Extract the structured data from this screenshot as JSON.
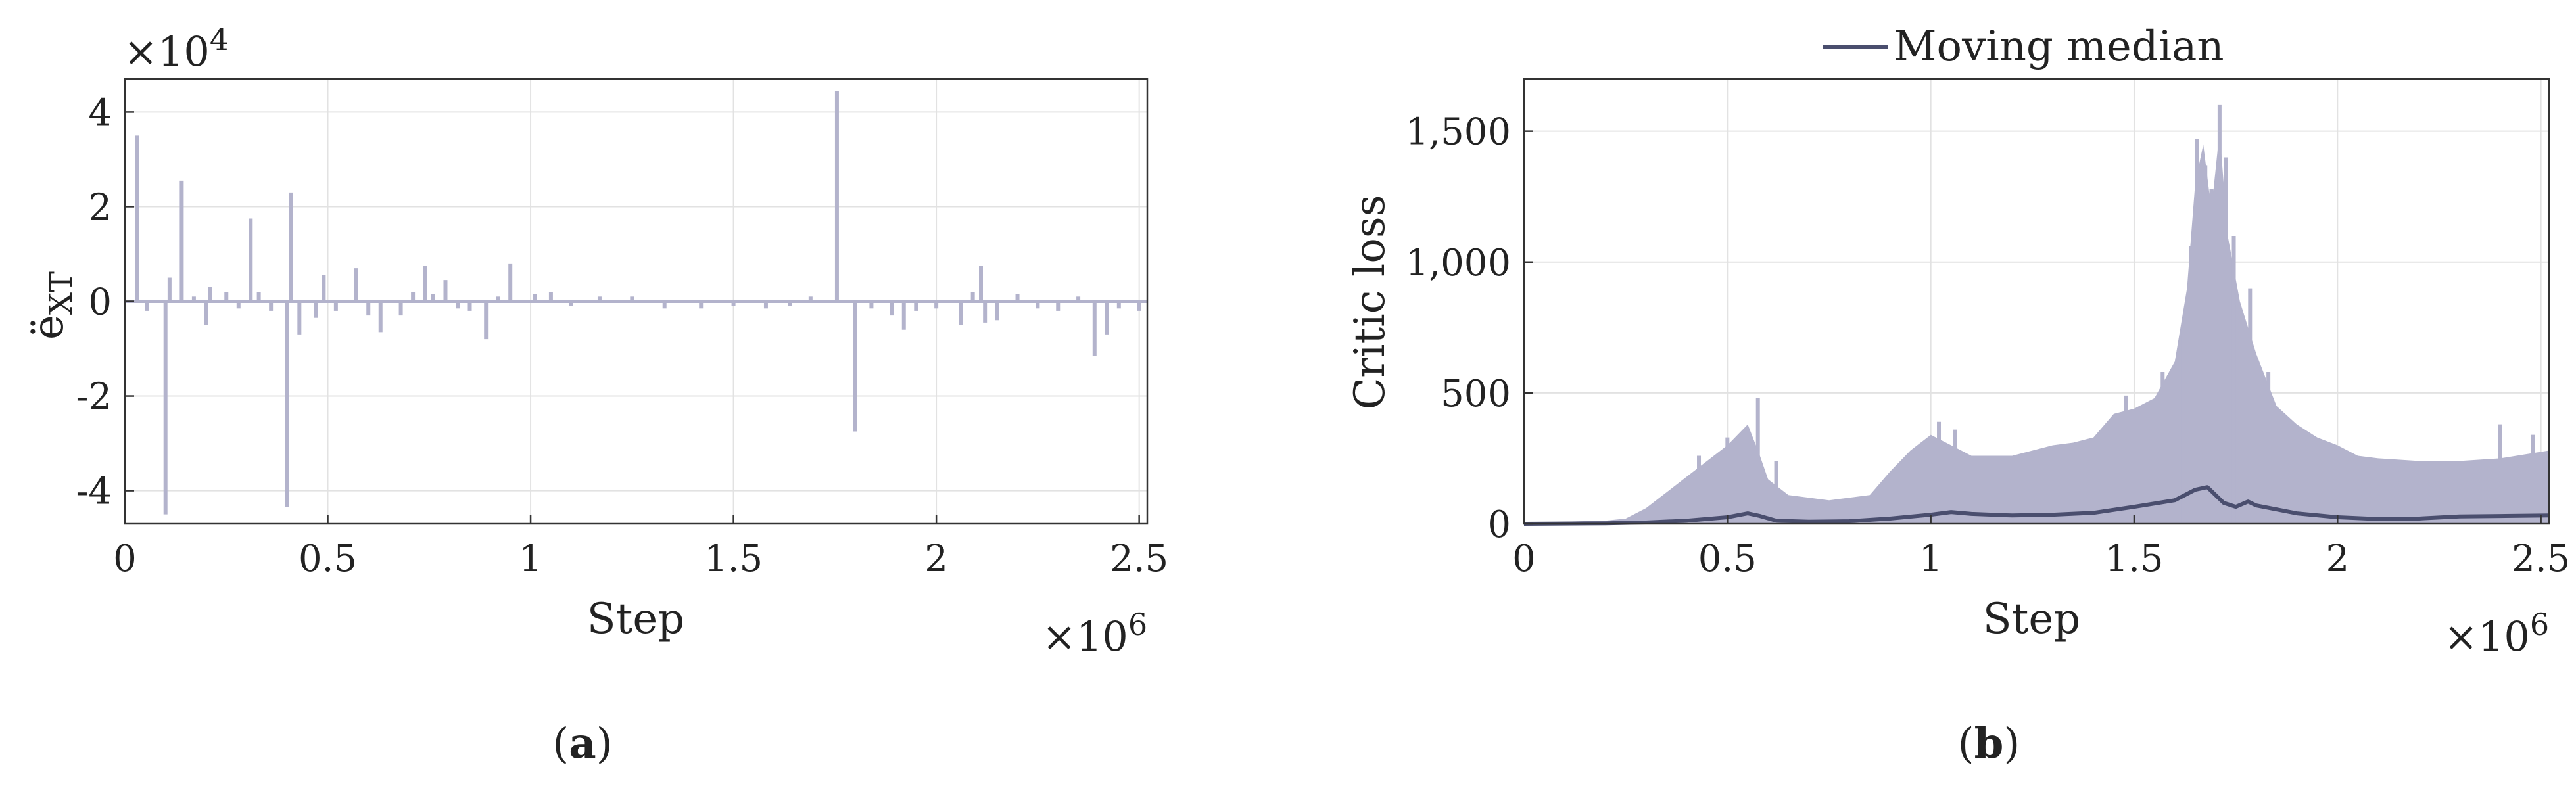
{
  "colors": {
    "spike": "#b3b3cc",
    "median": "#4a4e6e",
    "grid": "#e2e2e2",
    "axis": "#333333"
  },
  "chart_data": [
    {
      "type": "bar",
      "panel_label": {
        "open": "(",
        "letter": "a",
        "close": ")"
      },
      "xlabel": "Step",
      "ylabel": "ë",
      "ylabel_sub": "XT",
      "x_multiplier": {
        "base": "×10",
        "exp": "6"
      },
      "y_multiplier": {
        "base": "×10",
        "exp": "4"
      },
      "xlim": [
        0,
        2.52
      ],
      "ylim": [
        -4.7,
        4.7
      ],
      "xticks": [
        0,
        0.5,
        1,
        1.5,
        2,
        2.5
      ],
      "xtick_labels": [
        "0",
        "0.5",
        "1",
        "1.5",
        "2",
        "2.5"
      ],
      "yticks": [
        4,
        2,
        0,
        -2,
        -4
      ],
      "ytick_labels": [
        "4",
        "2",
        "0",
        "-2",
        "-4"
      ],
      "grid": true,
      "spikes": [
        [
          0.03,
          3.5
        ],
        [
          0.055,
          -0.2
        ],
        [
          0.1,
          -4.5
        ],
        [
          0.11,
          0.5
        ],
        [
          0.14,
          2.55
        ],
        [
          0.17,
          0.1
        ],
        [
          0.2,
          -0.5
        ],
        [
          0.21,
          0.3
        ],
        [
          0.25,
          0.2
        ],
        [
          0.28,
          -0.15
        ],
        [
          0.31,
          1.75
        ],
        [
          0.33,
          0.2
        ],
        [
          0.36,
          -0.2
        ],
        [
          0.4,
          -4.35
        ],
        [
          0.41,
          2.3
        ],
        [
          0.43,
          -0.7
        ],
        [
          0.47,
          -0.35
        ],
        [
          0.49,
          0.55
        ],
        [
          0.52,
          -0.2
        ],
        [
          0.57,
          0.7
        ],
        [
          0.6,
          -0.3
        ],
        [
          0.63,
          -0.65
        ],
        [
          0.68,
          -0.3
        ],
        [
          0.71,
          0.2
        ],
        [
          0.74,
          0.75
        ],
        [
          0.76,
          0.15
        ],
        [
          0.79,
          0.45
        ],
        [
          0.82,
          -0.15
        ],
        [
          0.85,
          -0.2
        ],
        [
          0.89,
          -0.8
        ],
        [
          0.92,
          0.1
        ],
        [
          0.95,
          0.8
        ],
        [
          1.01,
          0.15
        ],
        [
          1.05,
          0.2
        ],
        [
          1.1,
          -0.1
        ],
        [
          1.17,
          0.1
        ],
        [
          1.25,
          0.1
        ],
        [
          1.33,
          -0.15
        ],
        [
          1.42,
          -0.15
        ],
        [
          1.5,
          -0.1
        ],
        [
          1.58,
          -0.15
        ],
        [
          1.64,
          -0.1
        ],
        [
          1.69,
          0.1
        ],
        [
          1.755,
          4.45
        ],
        [
          1.8,
          -2.75
        ],
        [
          1.84,
          -0.15
        ],
        [
          1.89,
          -0.3
        ],
        [
          1.92,
          -0.6
        ],
        [
          1.95,
          -0.2
        ],
        [
          2.0,
          -0.15
        ],
        [
          2.06,
          -0.5
        ],
        [
          2.09,
          0.2
        ],
        [
          2.11,
          0.75
        ],
        [
          2.12,
          -0.45
        ],
        [
          2.15,
          -0.4
        ],
        [
          2.2,
          0.15
        ],
        [
          2.25,
          -0.15
        ],
        [
          2.3,
          -0.2
        ],
        [
          2.35,
          0.1
        ],
        [
          2.39,
          -1.15
        ],
        [
          2.42,
          -0.7
        ],
        [
          2.45,
          -0.15
        ],
        [
          2.5,
          -0.2
        ]
      ]
    },
    {
      "type": "area",
      "panel_label": {
        "open": "(",
        "letter": "b",
        "close": ")"
      },
      "xlabel": "Step",
      "ylabel": "Critic loss",
      "x_multiplier": {
        "base": "×10",
        "exp": "6"
      },
      "xlim": [
        0,
        2.52
      ],
      "ylim": [
        0,
        1700
      ],
      "xticks": [
        0,
        0.5,
        1,
        1.5,
        2,
        2.5
      ],
      "xtick_labels": [
        "0",
        "0.5",
        "1",
        "1.5",
        "2",
        "2.5"
      ],
      "yticks": [
        0,
        500,
        1000,
        1500
      ],
      "ytick_labels": [
        "0",
        "500",
        "1,000",
        "1,500"
      ],
      "grid": true,
      "legend": {
        "position": "top",
        "entries": [
          "Moving median"
        ]
      },
      "envelope": [
        [
          0,
          5
        ],
        [
          0.1,
          8
        ],
        [
          0.2,
          12
        ],
        [
          0.25,
          20
        ],
        [
          0.3,
          60
        ],
        [
          0.35,
          120
        ],
        [
          0.4,
          180
        ],
        [
          0.45,
          240
        ],
        [
          0.5,
          300
        ],
        [
          0.55,
          380
        ],
        [
          0.58,
          260
        ],
        [
          0.6,
          170
        ],
        [
          0.65,
          110
        ],
        [
          0.7,
          100
        ],
        [
          0.75,
          90
        ],
        [
          0.8,
          100
        ],
        [
          0.85,
          110
        ],
        [
          0.9,
          200
        ],
        [
          0.95,
          280
        ],
        [
          1.0,
          340
        ],
        [
          1.05,
          300
        ],
        [
          1.1,
          260
        ],
        [
          1.15,
          260
        ],
        [
          1.2,
          260
        ],
        [
          1.25,
          280
        ],
        [
          1.3,
          300
        ],
        [
          1.35,
          310
        ],
        [
          1.4,
          330
        ],
        [
          1.45,
          420
        ],
        [
          1.5,
          440
        ],
        [
          1.55,
          480
        ],
        [
          1.6,
          620
        ],
        [
          1.63,
          900
        ],
        [
          1.65,
          1300
        ],
        [
          1.67,
          1450
        ],
        [
          1.69,
          1200
        ],
        [
          1.71,
          1500
        ],
        [
          1.73,
          1100
        ],
        [
          1.76,
          850
        ],
        [
          1.8,
          650
        ],
        [
          1.85,
          450
        ],
        [
          1.9,
          380
        ],
        [
          1.95,
          330
        ],
        [
          2.0,
          300
        ],
        [
          2.05,
          260
        ],
        [
          2.1,
          250
        ],
        [
          2.2,
          240
        ],
        [
          2.3,
          240
        ],
        [
          2.4,
          250
        ],
        [
          2.52,
          280
        ]
      ],
      "peaks": [
        [
          0.43,
          260
        ],
        [
          0.5,
          330
        ],
        [
          0.545,
          290
        ],
        [
          0.575,
          480
        ],
        [
          0.62,
          240
        ],
        [
          1.02,
          390
        ],
        [
          1.06,
          360
        ],
        [
          1.48,
          490
        ],
        [
          1.57,
          580
        ],
        [
          1.62,
          750
        ],
        [
          1.64,
          1060
        ],
        [
          1.655,
          1470
        ],
        [
          1.675,
          1370
        ],
        [
          1.69,
          1280
        ],
        [
          1.71,
          1600
        ],
        [
          1.725,
          1400
        ],
        [
          1.745,
          1100
        ],
        [
          1.785,
          900
        ],
        [
          1.83,
          580
        ],
        [
          2.4,
          380
        ],
        [
          2.48,
          340
        ]
      ],
      "series": [
        {
          "name": "Moving median",
          "x": [
            0,
            0.2,
            0.3,
            0.4,
            0.5,
            0.55,
            0.58,
            0.62,
            0.7,
            0.8,
            0.9,
            1.0,
            1.05,
            1.1,
            1.2,
            1.3,
            1.4,
            1.5,
            1.6,
            1.65,
            1.68,
            1.72,
            1.75,
            1.78,
            1.8,
            1.85,
            1.9,
            2.0,
            2.1,
            2.2,
            2.3,
            2.4,
            2.52
          ],
          "y": [
            0,
            2,
            5,
            12,
            25,
            40,
            30,
            12,
            8,
            10,
            20,
            35,
            45,
            38,
            32,
            35,
            42,
            65,
            90,
            130,
            140,
            80,
            65,
            85,
            70,
            55,
            40,
            25,
            18,
            20,
            28,
            30,
            32
          ]
        }
      ]
    }
  ]
}
